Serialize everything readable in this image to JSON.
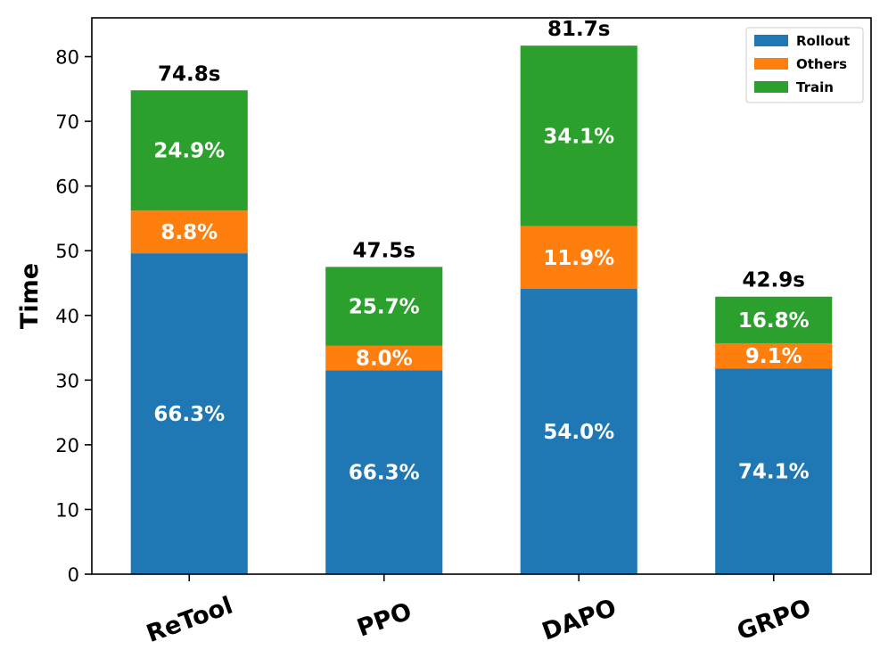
{
  "chart_data": {
    "type": "bar",
    "stacked": true,
    "title": "",
    "xlabel": "",
    "ylabel": "Time",
    "ylim": [
      0,
      86
    ],
    "yticks": [
      0,
      10,
      20,
      30,
      40,
      50,
      60,
      70,
      80
    ],
    "grid": false,
    "legend_position": "top-right",
    "categories": [
      "ReTool",
      "PPO",
      "DAPO",
      "GRPO"
    ],
    "series": [
      {
        "name": "Rollout",
        "color": "#1f77b4",
        "values": [
          49.6,
          31.5,
          44.1,
          31.8
        ],
        "labels": [
          "66.3%",
          "66.3%",
          "54.0%",
          "74.1%"
        ]
      },
      {
        "name": "Others",
        "color": "#ff7f0e",
        "values": [
          6.6,
          3.8,
          9.7,
          3.9
        ],
        "labels": [
          "8.8%",
          "8.0%",
          "11.9%",
          "9.1%"
        ]
      },
      {
        "name": "Train",
        "color": "#2ca02c",
        "values": [
          18.6,
          12.2,
          27.9,
          7.2
        ],
        "labels": [
          "24.9%",
          "25.7%",
          "34.1%",
          "16.8%"
        ]
      }
    ],
    "totals": [
      74.8,
      47.5,
      81.7,
      42.9
    ],
    "total_labels": [
      "74.8s",
      "47.5s",
      "81.7s",
      "42.9s"
    ]
  }
}
